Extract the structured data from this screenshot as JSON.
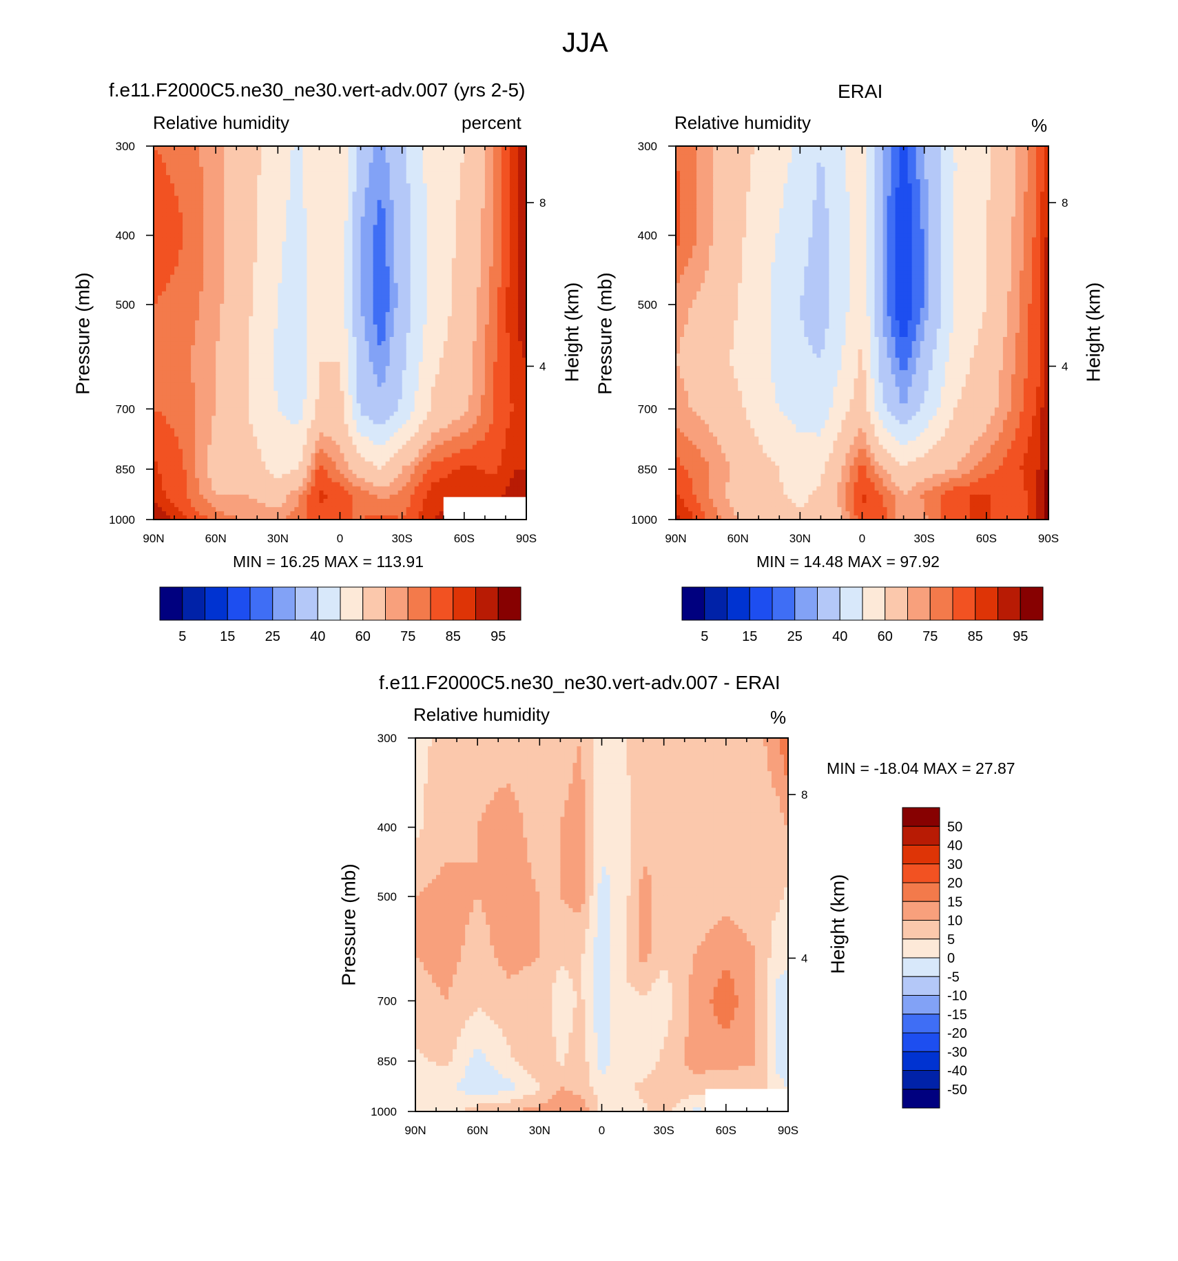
{
  "figure": {
    "title": "JJA"
  },
  "palettes": {
    "rh": [
      "#00007f",
      "#0022a8",
      "#0033d1",
      "#1d4ef0",
      "#3f6ef5",
      "#82a2f6",
      "#b4c8f8",
      "#d8e8fa",
      "#fde9d8",
      "#fbc8ac",
      "#f8a07c",
      "#f37a4b",
      "#f25222",
      "#de3406",
      "#b81b04",
      "#870101"
    ],
    "diff": [
      "#00007f",
      "#0022a8",
      "#0033d1",
      "#1d4ef0",
      "#3f6ef5",
      "#82a2f6",
      "#b4c8f8",
      "#d8e8fa",
      "#fde9d8",
      "#fbc8ac",
      "#f8a07c",
      "#f37a4b",
      "#f25222",
      "#de3406",
      "#b81b04",
      "#870101"
    ]
  },
  "panels": {
    "model": {
      "title": "f.e11.F2000C5.ne30_ne30.vert-adv.007 (yrs 2-5)",
      "left_label": "Relative humidity",
      "right_label": "percent",
      "ylabel": "Pressure (mb)",
      "y2label": "Height (km)",
      "stats": "MIN =  16.25  MAX = 113.91",
      "colorbar_labels": [
        "5",
        "15",
        "25",
        "40",
        "60",
        "75",
        "85",
        "95"
      ]
    },
    "obs": {
      "title": "ERAI",
      "left_label": "Relative humidity",
      "right_label": "%",
      "ylabel": "Pressure (mb)",
      "y2label": "Height (km)",
      "stats": "MIN =  14.48  MAX =  97.92",
      "colorbar_labels": [
        "5",
        "15",
        "25",
        "40",
        "60",
        "75",
        "85",
        "95"
      ]
    },
    "diff": {
      "title": "f.e11.F2000C5.ne30_ne30.vert-adv.007 - ERAI",
      "left_label": "Relative humidity",
      "right_label": "%",
      "ylabel": "Pressure (mb)",
      "y2label": "Height (km)",
      "stats": "MIN = -18.04  MAX =  27.87",
      "colorbar_labels": [
        "50",
        "40",
        "30",
        "20",
        "15",
        "10",
        "5",
        "0",
        "-5",
        "-10",
        "-15",
        "-20",
        "-30",
        "-40",
        "-50"
      ]
    }
  },
  "chart_data": [
    {
      "type": "heatmap",
      "name": "model",
      "title": "f.e11.F2000C5.ne30_ne30.vert-adv.007 (yrs 2-5)",
      "xlabel": "",
      "ylabel": "Pressure (mb)",
      "y2label": "Height (km)",
      "x_ticks": [
        "90N",
        "60N",
        "30N",
        "0",
        "30S",
        "60S",
        "90S"
      ],
      "y_ticks": [
        "300",
        "400",
        "500",
        "700",
        "850",
        "1000"
      ],
      "y2_ticks": [
        "8",
        "4"
      ],
      "levels": [
        5,
        10,
        15,
        20,
        25,
        30,
        40,
        50,
        60,
        70,
        75,
        80,
        85,
        90,
        95
      ],
      "stats": {
        "min": 16.25,
        "max": 113.91
      },
      "lat": [
        90,
        75,
        60,
        45,
        30,
        20,
        10,
        0,
        -10,
        -20,
        -30,
        -45,
        -60,
        -75,
        -85,
        -90
      ],
      "pressure": [
        300,
        400,
        500,
        600,
        700,
        850,
        925,
        1000
      ],
      "values": [
        [
          80,
          78,
          72,
          64,
          55,
          48,
          58,
          60,
          34,
          28,
          38,
          55,
          60,
          75,
          88,
          96
        ],
        [
          84,
          80,
          72,
          64,
          52,
          46,
          58,
          58,
          30,
          22,
          34,
          55,
          62,
          76,
          90,
          95
        ],
        [
          80,
          78,
          72,
          62,
          50,
          44,
          58,
          56,
          30,
          20,
          34,
          54,
          64,
          78,
          90,
          95
        ],
        [
          78,
          76,
          70,
          60,
          48,
          42,
          60,
          60,
          34,
          26,
          38,
          58,
          66,
          80,
          88,
          90
        ],
        [
          80,
          78,
          70,
          60,
          50,
          46,
          62,
          64,
          38,
          32,
          42,
          62,
          68,
          80,
          86,
          88
        ],
        [
          86,
          80,
          66,
          66,
          56,
          60,
          82,
          74,
          66,
          60,
          70,
          82,
          86,
          84,
          90,
          90
        ],
        [
          88,
          80,
          70,
          70,
          66,
          74,
          86,
          84,
          78,
          74,
          76,
          88,
          90,
          88,
          94,
          94
        ],
        [
          95,
          86,
          78,
          74,
          74,
          78,
          84,
          80,
          80,
          82,
          80,
          90,
          92,
          90,
          96,
          98
        ]
      ]
    },
    {
      "type": "heatmap",
      "name": "obs",
      "title": "ERAI",
      "xlabel": "",
      "ylabel": "Pressure (mb)",
      "y2label": "Height (km)",
      "x_ticks": [
        "90N",
        "60N",
        "30N",
        "0",
        "30S",
        "60S",
        "90S"
      ],
      "y_ticks": [
        "300",
        "400",
        "500",
        "700",
        "850",
        "1000"
      ],
      "y2_ticks": [
        "8",
        "4"
      ],
      "levels": [
        5,
        10,
        15,
        20,
        25,
        30,
        40,
        50,
        60,
        70,
        75,
        80,
        85,
        90,
        95
      ],
      "stats": {
        "min": 14.48,
        "max": 97.92
      },
      "lat": [
        90,
        75,
        60,
        45,
        30,
        20,
        10,
        0,
        -10,
        -20,
        -30,
        -45,
        -60,
        -75,
        -85,
        -90
      ],
      "pressure": [
        300,
        400,
        500,
        600,
        700,
        850,
        925,
        1000
      ],
      "values": [
        [
          80,
          72,
          64,
          56,
          48,
          40,
          48,
          58,
          30,
          18,
          30,
          50,
          58,
          70,
          80,
          90
        ],
        [
          82,
          72,
          62,
          52,
          44,
          36,
          46,
          56,
          28,
          14,
          26,
          50,
          60,
          72,
          82,
          92
        ],
        [
          72,
          68,
          60,
          50,
          40,
          34,
          46,
          58,
          28,
          14,
          26,
          50,
          60,
          74,
          84,
          92
        ],
        [
          70,
          66,
          58,
          50,
          42,
          40,
          50,
          62,
          34,
          22,
          34,
          56,
          64,
          76,
          84,
          94
        ],
        [
          72,
          68,
          62,
          52,
          46,
          44,
          56,
          66,
          42,
          30,
          42,
          60,
          66,
          78,
          86,
          96
        ],
        [
          82,
          76,
          68,
          62,
          56,
          58,
          70,
          82,
          70,
          62,
          66,
          70,
          78,
          84,
          90,
          96
        ],
        [
          86,
          76,
          66,
          62,
          58,
          62,
          72,
          86,
          80,
          70,
          76,
          84,
          86,
          80,
          92,
          98
        ],
        [
          92,
          80,
          70,
          64,
          62,
          62,
          70,
          84,
          82,
          70,
          74,
          84,
          86,
          80,
          92,
          98
        ]
      ]
    },
    {
      "type": "heatmap",
      "name": "diff",
      "title": "f.e11.F2000C5.ne30_ne30.vert-adv.007 - ERAI",
      "xlabel": "",
      "ylabel": "Pressure (mb)",
      "y2label": "Height (km)",
      "x_ticks": [
        "90N",
        "60N",
        "30N",
        "0",
        "30S",
        "60S",
        "90S"
      ],
      "y_ticks": [
        "300",
        "400",
        "500",
        "700",
        "850",
        "1000"
      ],
      "y2_ticks": [
        "8",
        "4"
      ],
      "levels": [
        -50,
        -40,
        -30,
        -20,
        -15,
        -10,
        -5,
        0,
        5,
        10,
        15,
        20,
        30,
        40,
        50
      ],
      "stats": {
        "min": -18.04,
        "max": 27.87
      },
      "lat": [
        90,
        75,
        60,
        45,
        30,
        20,
        10,
        0,
        -10,
        -20,
        -30,
        -45,
        -60,
        -75,
        -85,
        -90
      ],
      "pressure": [
        300,
        400,
        500,
        600,
        700,
        850,
        925,
        1000
      ],
      "values": [
        [
          4,
          6,
          8,
          8,
          7,
          8,
          10,
          2,
          4,
          10,
          8,
          5,
          6,
          8,
          14,
          20
        ],
        [
          4,
          8,
          10,
          12,
          8,
          10,
          12,
          2,
          2,
          8,
          8,
          5,
          6,
          6,
          8,
          10
        ],
        [
          10,
          12,
          10,
          12,
          10,
          10,
          12,
          -2,
          2,
          12,
          8,
          6,
          8,
          6,
          6,
          4
        ],
        [
          10,
          12,
          8,
          12,
          10,
          6,
          6,
          -4,
          4,
          12,
          6,
          10,
          14,
          10,
          2,
          2
        ],
        [
          8,
          10,
          6,
          8,
          8,
          2,
          6,
          -4,
          4,
          4,
          2,
          12,
          18,
          10,
          -2,
          -4
        ],
        [
          4,
          6,
          -2,
          4,
          10,
          4,
          8,
          -2,
          2,
          2,
          6,
          12,
          12,
          10,
          -2,
          -4
        ],
        [
          2,
          2,
          -4,
          -2,
          4,
          10,
          8,
          2,
          4,
          6,
          8,
          8,
          6,
          8,
          2,
          0
        ],
        [
          2,
          2,
          8,
          10,
          12,
          14,
          14,
          4,
          2,
          4,
          8,
          -2,
          4,
          6,
          4,
          4
        ]
      ]
    }
  ]
}
